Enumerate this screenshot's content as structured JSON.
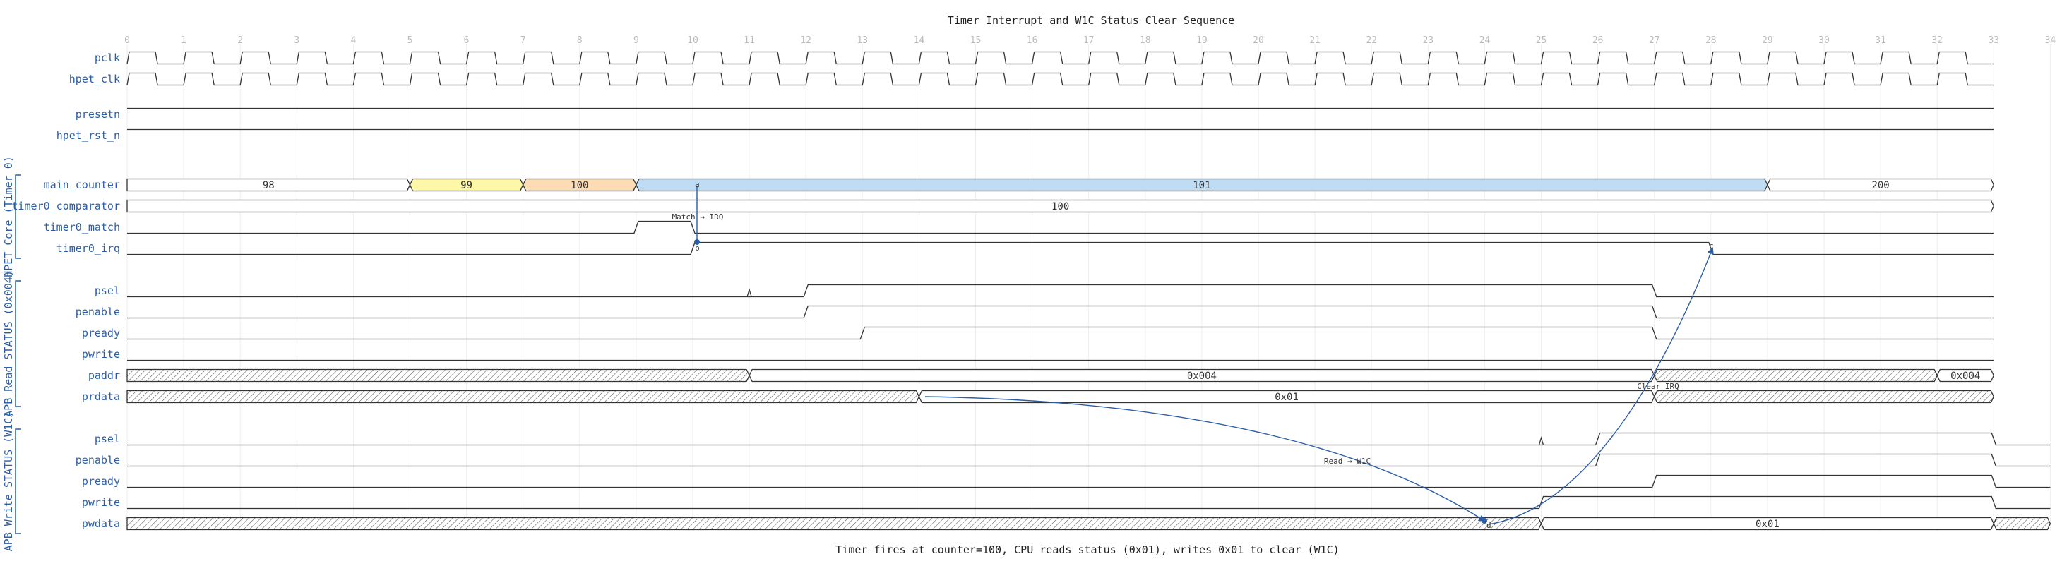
{
  "title": "Timer Interrupt and W1C Status Clear Sequence",
  "caption": "Timer fires at counter=100, CPU reads status (0x01), writes 0x01 to clear (W1C)",
  "ticks": [
    "0",
    "1",
    "2",
    "3",
    "4",
    "5",
    "6",
    "7",
    "8",
    "9",
    "10",
    "11",
    "12",
    "13",
    "14",
    "15",
    "16",
    "17",
    "18",
    "19",
    "20",
    "21",
    "22",
    "23",
    "24",
    "25",
    "26",
    "27",
    "28",
    "29",
    "30",
    "31",
    "32",
    "33",
    "34"
  ],
  "colors": {
    "wire": "#333333",
    "accent": "#2c5ea8",
    "yellow": "#fff7a8",
    "orange": "#fddcb5",
    "blue": "#bfdcf5"
  },
  "groups": [
    {
      "label": "HPET Core (Timer 0)"
    },
    {
      "label": "APB Read STATUS (0x004)"
    },
    {
      "label": "APB Write STATUS (W1C)"
    }
  ],
  "signals": [
    {
      "name": "pclk",
      "wave": "clock"
    },
    {
      "name": "hpet_clk",
      "wave": "clock"
    },
    {
      "name": "presetn",
      "wave": "high"
    },
    {
      "name": "hpet_rst_n",
      "wave": "high"
    },
    {
      "name": "main_counter",
      "wave": "bus",
      "segments": [
        {
          "from": 0,
          "to": 5,
          "label": "98"
        },
        {
          "from": 5,
          "to": 7,
          "label": "99",
          "color": "yellow"
        },
        {
          "from": 7,
          "to": 9,
          "label": "100",
          "color": "orange"
        },
        {
          "from": 9,
          "to": 29,
          "label": "101",
          "color": "blue"
        },
        {
          "from": 29,
          "to": 33,
          "label": "200"
        }
      ]
    },
    {
      "name": "timer0_comparator",
      "wave": "bus",
      "segments": [
        {
          "from": 0,
          "to": 33,
          "label": "100"
        }
      ]
    },
    {
      "name": "timer0_match",
      "wave": "logic",
      "init": 0,
      "edges": [
        {
          "t": 9,
          "v": 1
        },
        {
          "t": 10,
          "v": 0
        }
      ]
    },
    {
      "name": "timer0_irq",
      "wave": "logic",
      "init": 0,
      "edges": [
        {
          "t": 10,
          "v": 1
        },
        {
          "t": 28,
          "v": 0
        }
      ]
    },
    {
      "name": "psel",
      "wave": "logic",
      "init": 0,
      "glitch": 11,
      "edges": [
        {
          "t": 12,
          "v": 1
        },
        {
          "t": 27,
          "v": 0
        }
      ]
    },
    {
      "name": "penable",
      "wave": "logic",
      "init": 0,
      "edges": [
        {
          "t": 12,
          "v": 1
        },
        {
          "t": 27,
          "v": 0
        }
      ]
    },
    {
      "name": "pready",
      "wave": "logic",
      "init": 0,
      "edges": [
        {
          "t": 13,
          "v": 1
        },
        {
          "t": 27,
          "v": 0
        }
      ]
    },
    {
      "name": "pwrite",
      "wave": "low"
    },
    {
      "name": "paddr",
      "wave": "bus",
      "segments": [
        {
          "from": 0,
          "to": 11,
          "hatch": true
        },
        {
          "from": 11,
          "to": 27,
          "label": "0x004"
        },
        {
          "from": 27,
          "to": 32,
          "hatch": true
        },
        {
          "from": 32,
          "to": 33,
          "label": "0x004"
        }
      ]
    },
    {
      "name": "prdata",
      "wave": "bus",
      "segments": [
        {
          "from": 0,
          "to": 14,
          "hatch": true
        },
        {
          "from": 14,
          "to": 27,
          "label": "0x01"
        },
        {
          "from": 27,
          "to": 33,
          "hatch": true
        }
      ]
    },
    {
      "name": "psel",
      "wave": "logic",
      "init": 0,
      "glitch": 25,
      "edges": [
        {
          "t": 26,
          "v": 1
        },
        {
          "t": 33,
          "v": 0
        }
      ]
    },
    {
      "name": "penable",
      "wave": "logic",
      "init": 0,
      "edges": [
        {
          "t": 26,
          "v": 1
        },
        {
          "t": 33,
          "v": 0
        }
      ]
    },
    {
      "name": "pready",
      "wave": "logic",
      "init": 0,
      "edges": [
        {
          "t": 27,
          "v": 1
        },
        {
          "t": 33,
          "v": 0
        }
      ]
    },
    {
      "name": "pwrite",
      "wave": "logic",
      "init": 0,
      "edges": [
        {
          "t": 25,
          "v": 1
        },
        {
          "t": 33,
          "v": 0
        }
      ]
    },
    {
      "name": "pwdata",
      "wave": "bus",
      "segments": [
        {
          "from": 0,
          "to": 25,
          "hatch": true
        },
        {
          "from": 25,
          "to": 33,
          "label": "0x01"
        },
        {
          "from": 33,
          "to": 34,
          "hatch": true
        }
      ]
    }
  ],
  "annotations": [
    {
      "text": "Match → IRQ"
    },
    {
      "text": "Read → W1C"
    },
    {
      "text": "Clear IRQ"
    }
  ],
  "node_labels": [
    "a",
    "b",
    "c",
    "d"
  ]
}
